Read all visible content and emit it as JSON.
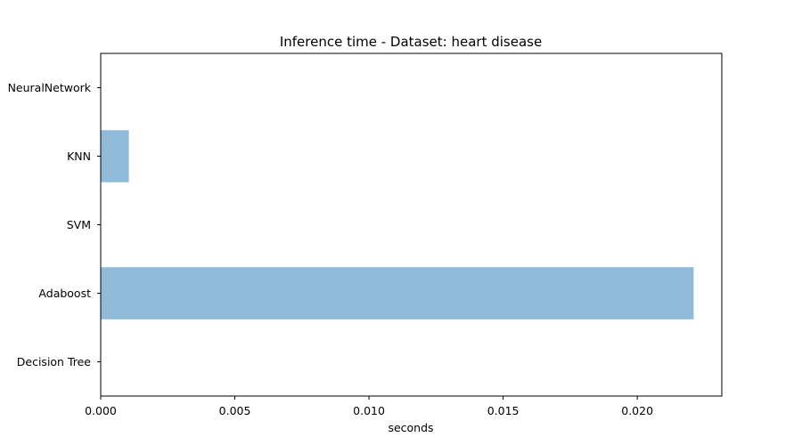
{
  "chart_data": {
    "type": "bar",
    "orientation": "horizontal",
    "title": "Inference time - Dataset: heart disease",
    "xlabel": "seconds",
    "ylabel": "",
    "categories": [
      "Decision Tree",
      "Adaboost",
      "SVM",
      "KNN",
      "NeuralNetwork"
    ],
    "values": [
      0.0,
      0.0221,
      0.0,
      0.00105,
      0.0
    ],
    "xlim": [
      0.0,
      0.02315
    ],
    "xticks": [
      0.0,
      0.005,
      0.01,
      0.015,
      0.02
    ],
    "xtick_labels": [
      "0.000",
      "0.005",
      "0.010",
      "0.015",
      "0.020"
    ],
    "grid": false,
    "legend": "none",
    "colors": {
      "bar": "#8fbbd9",
      "axis": "#000000",
      "background": "#ffffff"
    }
  }
}
